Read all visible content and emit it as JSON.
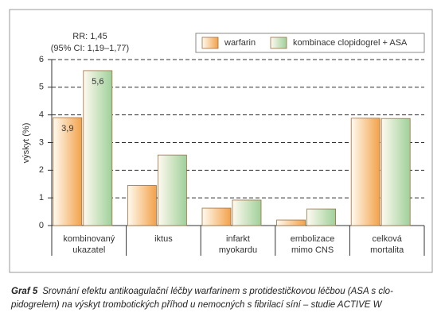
{
  "chart_data": {
    "type": "bar",
    "annotation": [
      "RR: 1,45",
      "(95% CI: 1,19–1,77)"
    ],
    "y_label": "výskyt (%)",
    "categories": [
      "kombinovaný\nukazatel",
      "iktus",
      "infarkt\nmyokardu",
      "embolizace\nmimo CNS",
      "celková\nmortalita"
    ],
    "series": [
      {
        "name": "warfarin",
        "color": "#f2a24a",
        "values": [
          3.9,
          1.45,
          0.63,
          0.2,
          3.88
        ],
        "value_labels": [
          "3,9",
          null,
          null,
          null,
          null
        ]
      },
      {
        "name": "kombinace clopidogrel + ASA",
        "color": "#9fd09a",
        "values": [
          5.6,
          2.55,
          0.92,
          0.6,
          3.87
        ],
        "value_labels": [
          "5,6",
          null,
          null,
          null,
          null
        ]
      }
    ],
    "ylim": [
      0,
      6
    ],
    "yticks": [
      0,
      1,
      2,
      3,
      4,
      5,
      6
    ],
    "grid": true
  },
  "caption": {
    "label": "Graf 5",
    "lines": [
      "Srovnání efektu antikoagulační léčby warfarinem s protidestičkovou léčbou (ASA s clo-",
      "pidogrelem) na výskyt trombotických příhod u nemocných s fibrilací síní – studie ACTIVE W"
    ]
  }
}
